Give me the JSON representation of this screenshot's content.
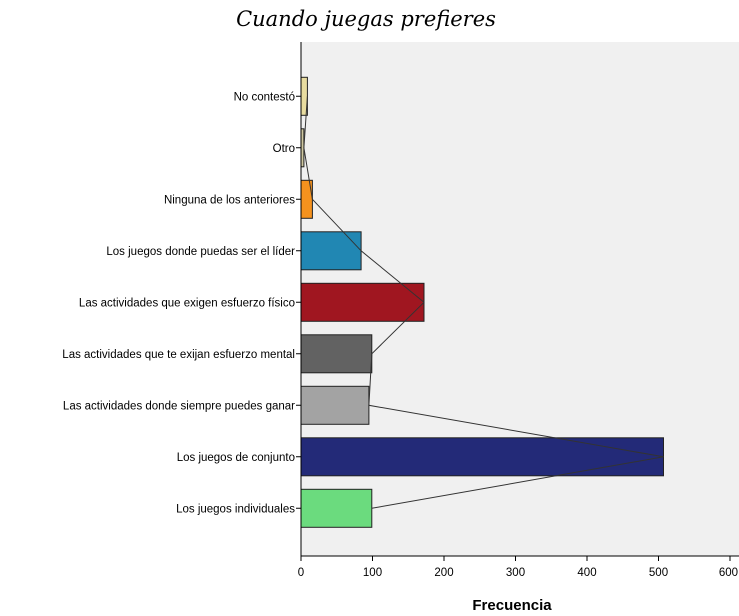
{
  "chart_data": {
    "type": "bar",
    "orientation": "horizontal",
    "title": "Cuando juegas prefieres",
    "xlabel": "Frecuencia",
    "ylabel": "",
    "xlim": [
      0,
      600
    ],
    "xticks": [
      0,
      100,
      200,
      300,
      400,
      500,
      600
    ],
    "grid": false,
    "categories": [
      "No contestó",
      "Otro",
      "Ninguna de los anteriores",
      "Los juegos donde puedas ser el líder",
      "Las actividades que exigen esfuerzo físico",
      "Las actividades que te exijan esfuerzo mental",
      "Las actividades donde siempre puedes ganar",
      "Los juegos de conjunto",
      "Los juegos individuales"
    ],
    "values": [
      9,
      4,
      16,
      84,
      172,
      99,
      95,
      507,
      99
    ],
    "colors": [
      "#e8dca0",
      "#cfc7a0",
      "#f5921e",
      "#2187b3",
      "#a01620",
      "#626262",
      "#a3a3a3",
      "#232a78",
      "#6bdb7e"
    ],
    "connecting_line": true,
    "plot_background": "#f0f0f0"
  }
}
